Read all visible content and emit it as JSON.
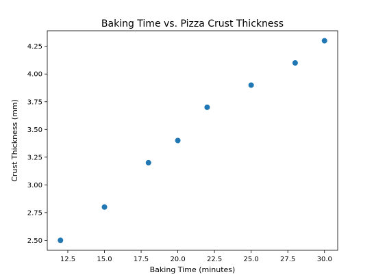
{
  "chart_data": {
    "type": "scatter",
    "title": "Baking Time vs. Pizza Crust Thickness",
    "xlabel": "Baking Time (minutes)",
    "ylabel": "Crust Thickness (mm)",
    "x": [
      12,
      15,
      18,
      20,
      22,
      25,
      28,
      30
    ],
    "y": [
      2.5,
      2.8,
      3.2,
      3.4,
      3.7,
      3.9,
      4.1,
      4.3
    ],
    "xlim": [
      11.1,
      30.9
    ],
    "ylim": [
      2.41,
      4.39
    ],
    "xticks": [
      12.5,
      15.0,
      17.5,
      20.0,
      22.5,
      25.0,
      27.5,
      30.0
    ],
    "xtick_labels": [
      "12.5",
      "15.0",
      "17.5",
      "20.0",
      "22.5",
      "25.0",
      "27.5",
      "30.0"
    ],
    "yticks": [
      2.5,
      2.75,
      3.0,
      3.25,
      3.5,
      3.75,
      4.0,
      4.25
    ],
    "ytick_labels": [
      "2.50",
      "2.75",
      "3.00",
      "3.25",
      "3.50",
      "3.75",
      "4.00",
      "4.25"
    ],
    "marker_color": "#1f77b4",
    "grid": false,
    "legend": "none"
  }
}
